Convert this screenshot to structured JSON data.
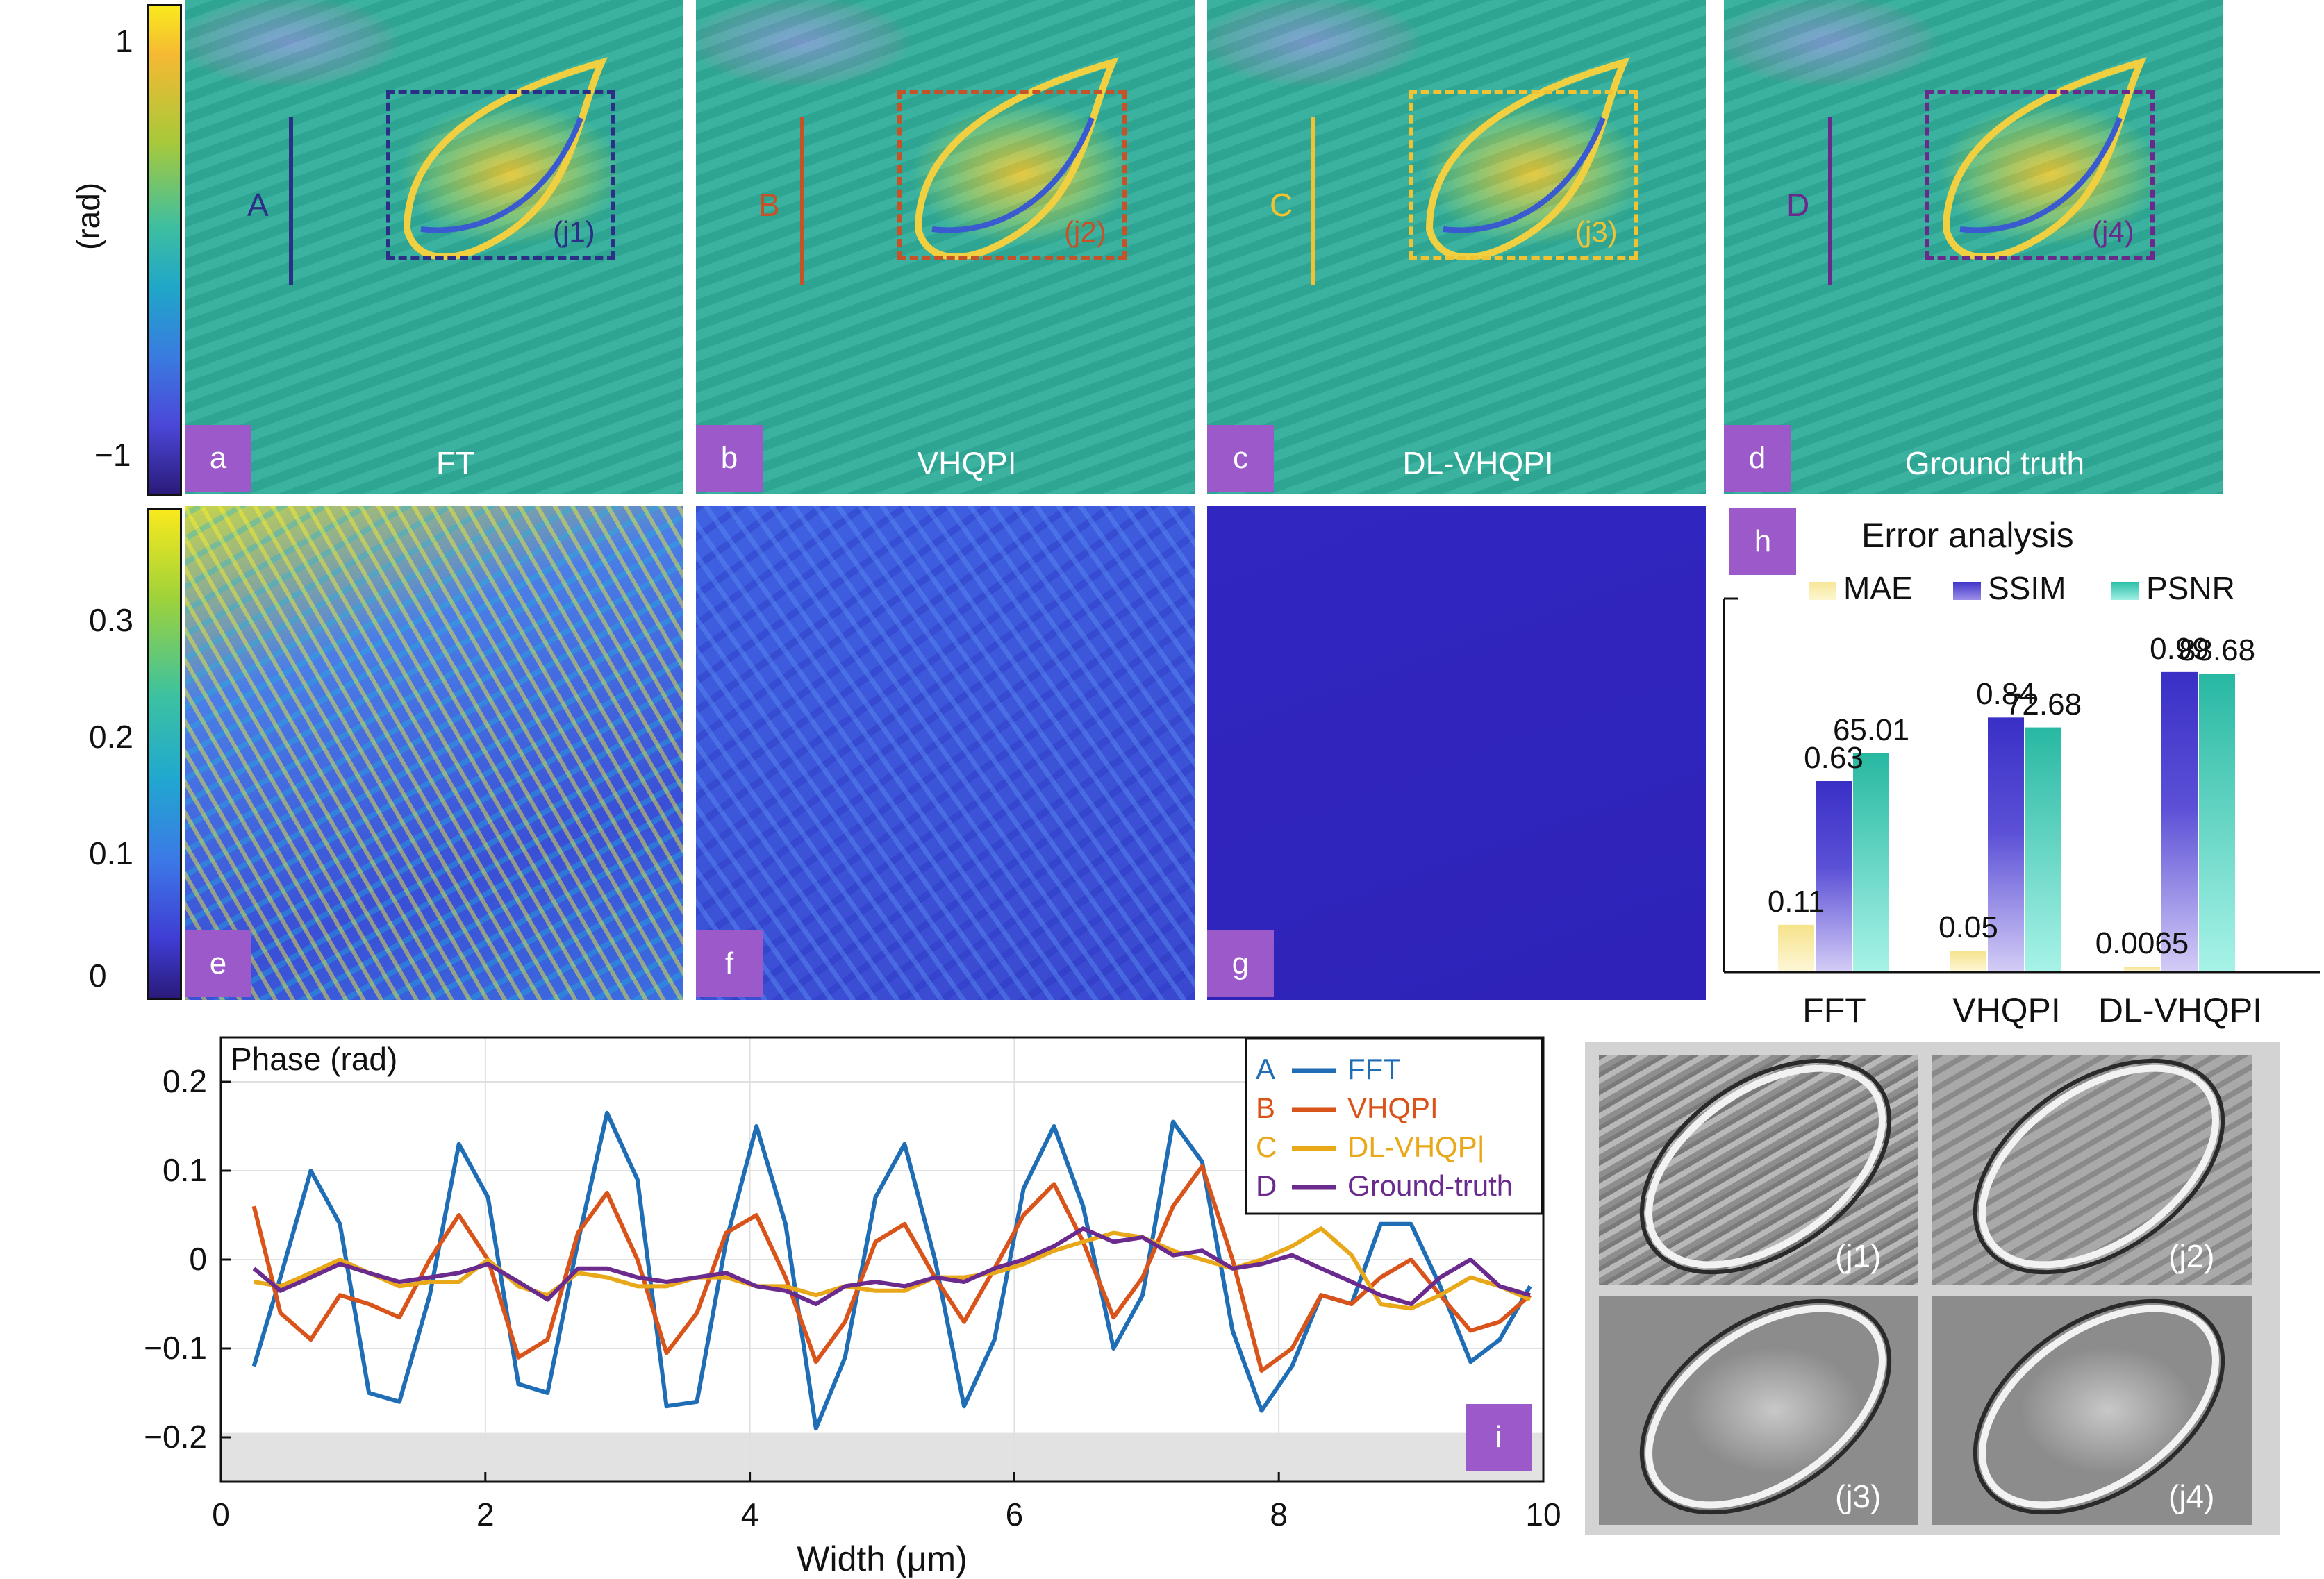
{
  "top_colorbar": {
    "unit": "(rad)",
    "ticks": [
      "1",
      "−1"
    ]
  },
  "bottom_colorbar": {
    "ticks": [
      "0.3",
      "0.2",
      "0.1",
      "0"
    ]
  },
  "panels_top": [
    {
      "badge": "a",
      "caption": "FT",
      "line_label": "A",
      "box_label": "(j1)",
      "color": "#2c2f86"
    },
    {
      "badge": "b",
      "caption": "VHQPI",
      "line_label": "B",
      "box_label": "(j2)",
      "color": "#c5532a"
    },
    {
      "badge": "c",
      "caption": "DL-VHQPI",
      "line_label": "C",
      "box_label": "(j3)",
      "color": "#f1c232"
    },
    {
      "badge": "d",
      "caption": "Ground truth",
      "line_label": "D",
      "box_label": "(j4)",
      "color": "#6a2a8c"
    }
  ],
  "panels_bottom": [
    {
      "badge": "e"
    },
    {
      "badge": "f"
    },
    {
      "badge": "g"
    }
  ],
  "error_chart": {
    "badge": "h",
    "title": "Error analysis",
    "legend": [
      "MAE",
      "SSIM",
      "PSNR"
    ],
    "colors": {
      "MAE": "#f6e79a",
      "SSIM": "#3f34c9",
      "PSNR": "#2bbfa8"
    },
    "chart_data": {
      "type": "bar",
      "categories": [
        "FFT",
        "VHQPI",
        "DL-VHQPI"
      ],
      "series": [
        {
          "name": "MAE",
          "values": [
            0.11,
            0.05,
            0.0065
          ],
          "labels": [
            "0.11",
            "0.05",
            "0.0065"
          ]
        },
        {
          "name": "SSIM",
          "values": [
            0.63,
            0.84,
            0.99
          ],
          "labels": [
            "0.63",
            "0.84",
            "0.99"
          ]
        },
        {
          "name": "PSNR",
          "values": [
            65.01,
            72.68,
            88.68
          ],
          "labels": [
            "65.01",
            "72.68",
            "88.68"
          ]
        }
      ]
    }
  },
  "line_chart": {
    "badge": "i",
    "inner_title": "Phase (rad)",
    "xlabel": "Width (μm)",
    "xticks": [
      "0",
      "2",
      "4",
      "6",
      "8",
      "10"
    ],
    "yticks": [
      "0.2",
      "0.1",
      "0",
      "−0.1",
      "−0.2"
    ],
    "legend": [
      {
        "letter": "A",
        "name": "FFT",
        "color": "#1f6db5"
      },
      {
        "letter": "B",
        "name": "VHQPI",
        "color": "#d9541a"
      },
      {
        "letter": "C",
        "name": "DL-VHQP|",
        "color": "#e8a81a"
      },
      {
        "letter": "D",
        "name": "Ground-truth",
        "color": "#6b2a8e"
      }
    ],
    "chart_data": {
      "type": "line",
      "xlim": [
        0,
        10
      ],
      "ylim": [
        -0.25,
        0.25
      ],
      "x": [
        0.25,
        0.45,
        0.68,
        0.9,
        1.12,
        1.35,
        1.58,
        1.8,
        2.02,
        2.25,
        2.47,
        2.7,
        2.92,
        3.15,
        3.37,
        3.6,
        3.82,
        4.05,
        4.27,
        4.5,
        4.72,
        4.95,
        5.17,
        5.4,
        5.62,
        5.85,
        6.07,
        6.3,
        6.52,
        6.75,
        6.97,
        7.2,
        7.42,
        7.65,
        7.87,
        8.1,
        8.32,
        8.55,
        8.77,
        9.0,
        9.22,
        9.45,
        9.67,
        9.9
      ],
      "series": [
        {
          "name": "FFT",
          "values": [
            -0.12,
            -0.02,
            0.1,
            0.04,
            -0.15,
            -0.16,
            -0.04,
            0.13,
            0.07,
            -0.14,
            -0.15,
            0.02,
            0.165,
            0.09,
            -0.165,
            -0.16,
            0.02,
            0.15,
            0.04,
            -0.19,
            -0.11,
            0.07,
            0.13,
            0.0,
            -0.165,
            -0.09,
            0.08,
            0.15,
            0.06,
            -0.1,
            -0.04,
            0.155,
            0.11,
            -0.08,
            -0.17,
            -0.12,
            -0.04,
            -0.05,
            0.04,
            0.04,
            -0.03,
            -0.115,
            -0.09,
            -0.03
          ]
        },
        {
          "name": "VHQPI",
          "values": [
            0.06,
            -0.06,
            -0.09,
            -0.04,
            -0.05,
            -0.065,
            0.0,
            0.05,
            0.0,
            -0.11,
            -0.09,
            0.03,
            0.075,
            0.0,
            -0.105,
            -0.06,
            0.03,
            0.05,
            -0.02,
            -0.115,
            -0.07,
            0.02,
            0.04,
            -0.02,
            -0.07,
            -0.01,
            0.05,
            0.085,
            0.02,
            -0.065,
            -0.02,
            0.06,
            0.105,
            0.0,
            -0.125,
            -0.1,
            -0.04,
            -0.05,
            -0.02,
            0.0,
            -0.04,
            -0.08,
            -0.07,
            -0.04
          ]
        },
        {
          "name": "DL-VHQPI",
          "values": [
            -0.025,
            -0.03,
            -0.015,
            0.0,
            -0.015,
            -0.03,
            -0.025,
            -0.025,
            0.0,
            -0.03,
            -0.04,
            -0.015,
            -0.02,
            -0.03,
            -0.03,
            -0.02,
            -0.02,
            -0.03,
            -0.03,
            -0.04,
            -0.03,
            -0.035,
            -0.035,
            -0.02,
            -0.02,
            -0.015,
            -0.005,
            0.01,
            0.02,
            0.03,
            0.025,
            0.01,
            0.0,
            -0.01,
            0.0,
            0.015,
            0.035,
            0.005,
            -0.05,
            -0.055,
            -0.04,
            -0.02,
            -0.03,
            -0.045
          ]
        },
        {
          "name": "Ground-truth",
          "values": [
            -0.01,
            -0.035,
            -0.02,
            -0.005,
            -0.015,
            -0.025,
            -0.02,
            -0.015,
            -0.005,
            -0.025,
            -0.045,
            -0.01,
            -0.01,
            -0.02,
            -0.025,
            -0.02,
            -0.015,
            -0.03,
            -0.035,
            -0.05,
            -0.03,
            -0.025,
            -0.03,
            -0.02,
            -0.025,
            -0.01,
            0.0,
            0.015,
            0.035,
            0.02,
            0.025,
            0.005,
            0.01,
            -0.01,
            -0.005,
            0.005,
            -0.01,
            -0.025,
            -0.04,
            -0.05,
            -0.02,
            0.0,
            -0.03,
            -0.04
          ]
        }
      ]
    }
  },
  "insets": [
    {
      "label": "(j1)"
    },
    {
      "label": "(j2)"
    },
    {
      "label": "(j3)"
    },
    {
      "label": "(j4)"
    }
  ]
}
